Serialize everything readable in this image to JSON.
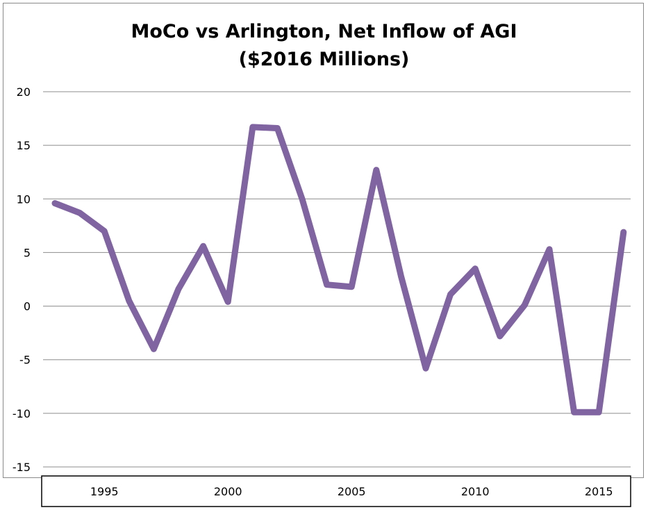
{
  "chart_data": {
    "type": "line",
    "title": "MoCo vs Arlington, Net Inflow of AGI",
    "subtitle": "($2016 Millions)",
    "xlabel": "",
    "ylabel": "",
    "ylim": [
      -15,
      20
    ],
    "yticks": [
      "20",
      "15",
      "10",
      "5",
      "0",
      "-5",
      "-10",
      "-15"
    ],
    "xticks": [
      "1995",
      "2000",
      "2005",
      "2010",
      "2015"
    ],
    "xtick_years": [
      1995,
      2000,
      2005,
      2010,
      2015
    ],
    "grid": true,
    "legend": "none",
    "line_color": "#8064a2",
    "x": [
      1993,
      1994,
      1995,
      1996,
      1997,
      1998,
      1999,
      2000,
      2001,
      2002,
      2003,
      2004,
      2005,
      2006,
      2007,
      2008,
      2009,
      2010,
      2011,
      2012,
      2013,
      2014,
      2015,
      2016
    ],
    "series": [
      {
        "values": [
          9.6,
          8.7,
          7.0,
          0.5,
          -4.0,
          1.6,
          5.6,
          0.4,
          16.7,
          16.6,
          10.0,
          2.0,
          1.8,
          12.7,
          2.8,
          -5.8,
          1.1,
          3.5,
          -2.8,
          0.1,
          5.3,
          -9.9,
          -9.9,
          6.9
        ]
      }
    ]
  }
}
